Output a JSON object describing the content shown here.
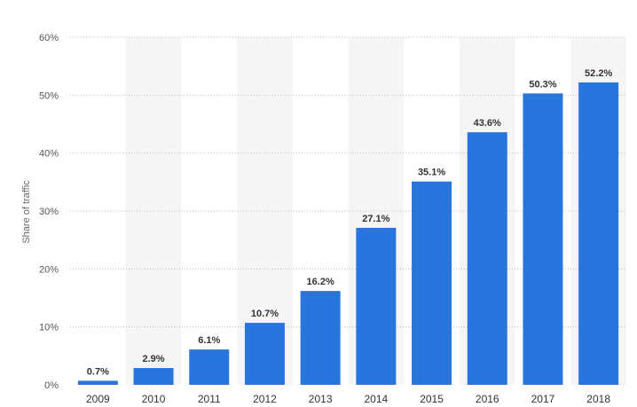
{
  "chart_data": {
    "type": "bar",
    "categories": [
      "2009",
      "2010",
      "2011",
      "2012",
      "2013",
      "2014",
      "2015",
      "2016",
      "2017",
      "2018"
    ],
    "values": [
      0.7,
      2.9,
      6.1,
      10.7,
      16.2,
      27.1,
      35.1,
      43.6,
      50.3,
      52.2
    ],
    "data_labels": [
      "0.7%",
      "2.9%",
      "6.1%",
      "10.7%",
      "16.2%",
      "27.1%",
      "35.1%",
      "43.6%",
      "50.3%",
      "52.2%"
    ],
    "title": "",
    "xlabel": "",
    "ylabel": "Share of traffic",
    "ylim": [
      0,
      60
    ],
    "y_ticks": [
      0,
      10,
      20,
      30,
      40,
      50,
      60
    ],
    "y_tick_labels": [
      "0%",
      "10%",
      "20%",
      "30%",
      "40%",
      "50%",
      "60%"
    ],
    "grid": true,
    "grid_style": "dotted",
    "legend": "none",
    "colors": {
      "bar": "#2876dd",
      "band": "#f5f5f5",
      "grid": "#bfbfbf"
    }
  }
}
